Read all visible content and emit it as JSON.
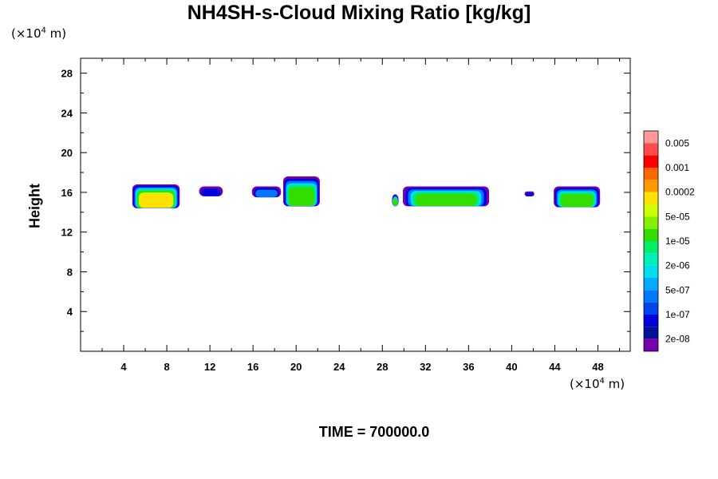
{
  "title": "NH4SH-s-Cloud Mixing Ratio [kg/kg]",
  "y_unit": {
    "prefix": "(×10",
    "exp": "4",
    "suffix": " m)"
  },
  "x_unit": {
    "prefix": "(×10",
    "exp": "4",
    "suffix": " m)"
  },
  "footer": "TIME = 700000.0",
  "chart_data": {
    "type": "heatmap",
    "title": "NH4SH-s-Cloud Mixing Ratio [kg/kg]",
    "xlabel": "",
    "ylabel": "Height",
    "x_unit": "×10^4 m",
    "y_unit": "×10^4 m",
    "xlim": [
      0,
      51
    ],
    "ylim": [
      0,
      29.5
    ],
    "x_ticks": [
      4,
      8,
      12,
      16,
      20,
      24,
      28,
      32,
      36,
      40,
      44,
      48
    ],
    "y_ticks": [
      4,
      8,
      12,
      16,
      20,
      24,
      28
    ],
    "grid": false,
    "colorbar": {
      "position": "right",
      "labels": [
        "0.005",
        "0.001",
        "0.0002",
        "5e-05",
        "1e-05",
        "2e-06",
        "5e-07",
        "1e-07",
        "2e-08"
      ],
      "colors_top_to_bottom": [
        "#ff9999",
        "#ff4d4d",
        "#ff0000",
        "#ff6600",
        "#ff9900",
        "#ffe000",
        "#ccff00",
        "#88ee00",
        "#33dd00",
        "#00ee66",
        "#00eebb",
        "#00ddee",
        "#00aaff",
        "#0077ff",
        "#0044ee",
        "#0000dd",
        "#001199",
        "#7700aa"
      ]
    },
    "cloud_regions": [
      {
        "x_start": 4.8,
        "x_end": 9.2,
        "y_bottom": 14.4,
        "y_top": 16.8,
        "core": "yellow"
      },
      {
        "x_start": 11.0,
        "x_end": 13.2,
        "y_bottom": 15.6,
        "y_top": 16.6,
        "core": "blue"
      },
      {
        "x_start": 15.9,
        "x_end": 18.6,
        "y_bottom": 15.5,
        "y_top": 16.6,
        "core": "cyan"
      },
      {
        "x_start": 18.8,
        "x_end": 22.2,
        "y_bottom": 14.6,
        "y_top": 17.6,
        "core": "green"
      },
      {
        "x_start": 28.9,
        "x_end": 29.5,
        "y_bottom": 14.6,
        "y_top": 15.8,
        "core": "green"
      },
      {
        "x_start": 29.9,
        "x_end": 37.9,
        "y_bottom": 14.6,
        "y_top": 16.6,
        "core": "green"
      },
      {
        "x_start": 41.2,
        "x_end": 42.1,
        "y_bottom": 15.6,
        "y_top": 16.1,
        "core": "blue"
      },
      {
        "x_start": 43.9,
        "x_end": 48.2,
        "y_bottom": 14.5,
        "y_top": 16.6,
        "core": "green"
      }
    ]
  }
}
